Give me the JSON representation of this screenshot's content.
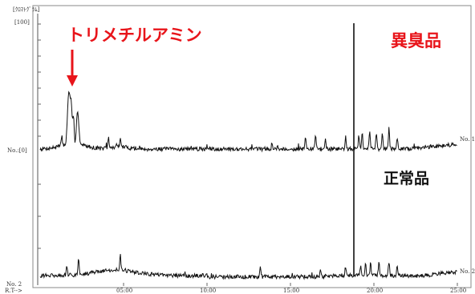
{
  "chart_data": {
    "type": "line",
    "header_label": "[ｸﾛﾏﾄｸﾞﾗﾑ]",
    "y_top_label": "[100]",
    "y_zero_label": "No.:[0]",
    "lower_left_label": "No. 2",
    "x_axis_prefix": "R.T-->",
    "x_ticks": [
      "05:00",
      "10:00",
      "15:00",
      "20:00",
      "25:00"
    ],
    "x_tick_minutes": [
      5,
      10,
      15,
      20,
      25
    ],
    "x_range_min": [
      0,
      25
    ],
    "annotations": {
      "tma": "トリメチルアミン",
      "odor_sample": "異臭品",
      "normal_sample": "正常品"
    },
    "series": [
      {
        "name": "No. 1",
        "peaks": [
          {
            "t": 1.3,
            "rel": 12
          },
          {
            "t": 1.7,
            "rel": 55
          },
          {
            "t": 1.85,
            "rel": 48
          },
          {
            "t": 2.0,
            "rel": 30
          },
          {
            "t": 2.25,
            "rel": 40
          },
          {
            "t": 4.1,
            "rel": 12
          },
          {
            "t": 4.8,
            "rel": 9
          },
          {
            "t": 13.9,
            "rel": 8
          },
          {
            "t": 15.9,
            "rel": 14
          },
          {
            "t": 16.5,
            "rel": 16
          },
          {
            "t": 17.1,
            "rel": 12
          },
          {
            "t": 18.3,
            "rel": 14
          },
          {
            "t": 18.7,
            "rel": 100
          },
          {
            "t": 19.1,
            "rel": 16
          },
          {
            "t": 19.3,
            "rel": 18
          },
          {
            "t": 19.75,
            "rel": 22
          },
          {
            "t": 20.15,
            "rel": 20
          },
          {
            "t": 20.5,
            "rel": 20
          },
          {
            "t": 20.9,
            "rel": 24
          },
          {
            "t": 21.4,
            "rel": 12
          }
        ]
      },
      {
        "name": "No. 2",
        "peaks": [
          {
            "t": 1.6,
            "rel": 10
          },
          {
            "t": 2.3,
            "rel": 22
          },
          {
            "t": 4.8,
            "rel": 20
          },
          {
            "t": 13.2,
            "rel": 14
          },
          {
            "t": 16.8,
            "rel": 10
          },
          {
            "t": 18.3,
            "rel": 12
          },
          {
            "t": 18.7,
            "rel": 100
          },
          {
            "t": 19.2,
            "rel": 12
          },
          {
            "t": 19.5,
            "rel": 16
          },
          {
            "t": 19.8,
            "rel": 15
          },
          {
            "t": 20.3,
            "rel": 18
          },
          {
            "t": 20.9,
            "rel": 17
          },
          {
            "t": 21.4,
            "rel": 12
          }
        ]
      }
    ]
  }
}
